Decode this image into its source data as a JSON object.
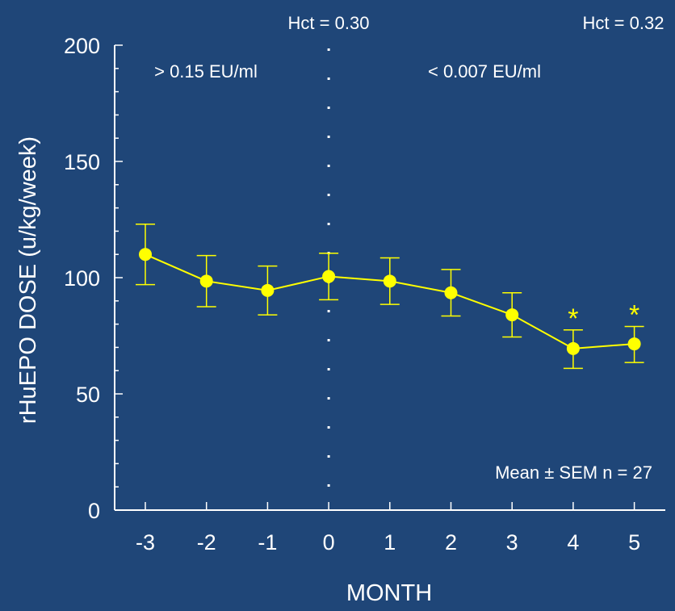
{
  "chart_data": {
    "type": "line",
    "title": "",
    "xlabel": "MONTH",
    "ylabel": "rHuEPO DOSE  (u/kg/week)",
    "x": [
      -3,
      -2,
      -1,
      0,
      1,
      2,
      3,
      4,
      5
    ],
    "x_tick_labels": [
      "-3",
      "-2",
      "-1",
      "0",
      "1",
      "2",
      "3",
      "4",
      "5"
    ],
    "ylim": [
      0,
      200
    ],
    "y_ticks": [
      0,
      50,
      100,
      150,
      200
    ],
    "y_tick_labels": [
      "0",
      "50",
      "100",
      "150",
      "200"
    ],
    "series": [
      {
        "name": "",
        "color": "#ffff00",
        "values": [
          110,
          98.5,
          94.5,
          100.5,
          98.5,
          93.5,
          84,
          69.5,
          71.5
        ],
        "error_upper": [
          123,
          109.5,
          105,
          110.5,
          108.5,
          103.5,
          93.5,
          77.5,
          79
        ],
        "error_lower": [
          97,
          87.5,
          84,
          90.5,
          88.5,
          83.5,
          74.5,
          61,
          63.5
        ]
      }
    ],
    "significance_markers": [
      {
        "x": 4,
        "symbol": "*"
      },
      {
        "x": 5,
        "symbol": "*"
      }
    ],
    "vertical_divider_x": 0,
    "annotations": {
      "region_left": "> 0.15 EU/ml",
      "region_right": "< 0.007 EU/ml",
      "hct_left": "Hct = 0.30",
      "hct_right": "Hct = 0.32",
      "stats_note": "Mean ± SEM n = 27"
    },
    "grid": false,
    "legend": "none"
  }
}
